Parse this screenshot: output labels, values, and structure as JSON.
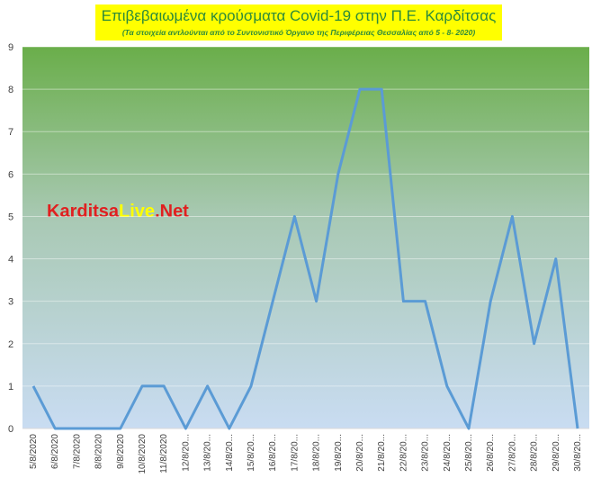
{
  "chart_data": {
    "type": "line",
    "title": "Επιβεβαιωμένα κρούσματα Covid-19 στην Π.Ε. Καρδίτσας",
    "subtitle": "(Τα στοιχεία αντλούνται από το Συντονιστικό Όργανο της Περιφέρειας Θεσσαλίας από 5 - 8- 2020)",
    "watermark": [
      "Karditsa",
      "Live",
      ".Net"
    ],
    "categories": [
      "5/8/2020",
      "6/8/2020",
      "7/8/2020",
      "8/8/2020",
      "9/8/2020",
      "10/8/2020",
      "11/8/2020",
      "12/8/20...",
      "13/8/20...",
      "14/8/20...",
      "15/8/20...",
      "16/8/20...",
      "17/8/20...",
      "18/8/20...",
      "19/8/20...",
      "20/8/20...",
      "21/8/20...",
      "22/8/20...",
      "23/8/20...",
      "24/8/20...",
      "25/8/20...",
      "26/8/20...",
      "27/8/20...",
      "28/8/20...",
      "29/8/20...",
      "30/8/20..."
    ],
    "values": [
      1,
      0,
      0,
      0,
      0,
      1,
      1,
      0,
      1,
      0,
      1,
      3,
      5,
      3,
      6,
      8,
      8,
      3,
      3,
      1,
      0,
      3,
      5,
      2,
      4,
      0
    ],
    "color": "#5b9bd5",
    "ylim": [
      0,
      9
    ],
    "yticks": [
      0,
      1,
      2,
      3,
      4,
      5,
      6,
      7,
      8,
      9
    ],
    "grid": true
  }
}
